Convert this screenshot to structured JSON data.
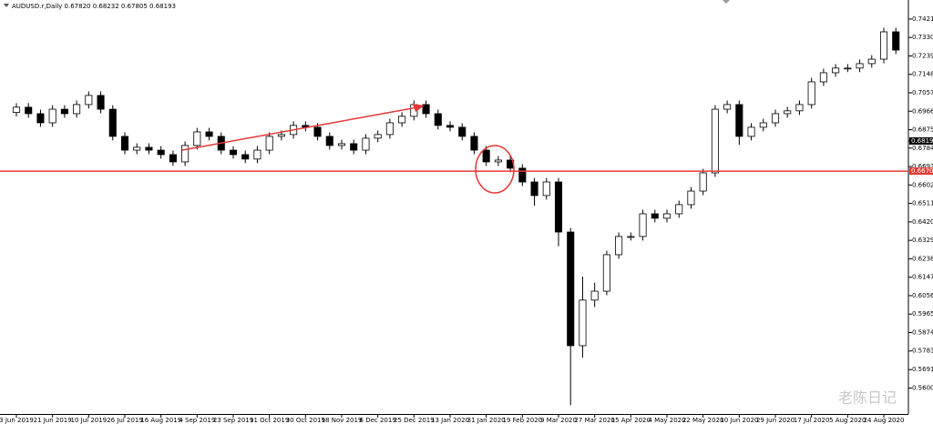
{
  "chart_data": {
    "type": "candlestick",
    "title": "AUDUSD.r,Daily 0.67820 0.68232 0.67805 0.68193",
    "categories": [
      "3 Jun 2019",
      null,
      null,
      "21 Jun 2019",
      null,
      null,
      "10 Jul 2019",
      null,
      null,
      "26 Jul 2019",
      null,
      null,
      "16 Aug 2019",
      null,
      null,
      "4 Sep 2019",
      null,
      null,
      "23 Sep 2019",
      null,
      null,
      "11 Oct 2019",
      null,
      null,
      "30 Oct 2019",
      null,
      null,
      "18 Nov 2019",
      null,
      null,
      "6 Dec 2019",
      null,
      null,
      "25 Dec 2019",
      null,
      null,
      "13 Jan 2020",
      null,
      null,
      "31 Jan 2020",
      null,
      null,
      "19 Feb 2020",
      null,
      null,
      "9 Mar 2020",
      null,
      null,
      "27 Mar 2020",
      null,
      null,
      "15 Apr 2020",
      null,
      null,
      "4 May 2020",
      null,
      null,
      "22 May 2020",
      null,
      null,
      "10 Jun 2020",
      null,
      null,
      "29 Jun 2020",
      null,
      null,
      "17 Jul 2020",
      null,
      null,
      "5 Aug 2020",
      null,
      null,
      "24 Aug 2020",
      null
    ],
    "open": [
      0.696,
      0.6986,
      0.6954,
      0.6909,
      0.6976,
      0.6954,
      0.6999,
      0.7044,
      0.6976,
      0.6842,
      0.6774,
      0.6788,
      0.6774,
      0.6752,
      0.6716,
      0.6797,
      0.6864,
      0.6842,
      0.6774,
      0.6752,
      0.673,
      0.6774,
      0.6842,
      0.6851,
      0.6896,
      0.6887,
      0.6842,
      0.6797,
      0.6806,
      0.6774,
      0.6833,
      0.6851,
      0.6909,
      0.6941,
      0.6999,
      0.6954,
      0.6896,
      0.6887,
      0.6842,
      0.6774,
      0.6716,
      0.6725,
      0.6685,
      0.6617,
      0.655,
      0.6617,
      0.637,
      0.5809,
      0.6034,
      0.6078,
      0.6258,
      0.6348,
      0.6348,
      0.646,
      0.6438,
      0.646,
      0.6505,
      0.6572,
      0.6662,
      0.6976,
      0.6999,
      0.6842,
      0.6887,
      0.6909,
      0.6954,
      0.6968,
      0.6999,
      0.7111,
      0.7156,
      0.7179,
      0.7179,
      0.7201,
      0.7223,
      0.7358
    ],
    "high": [
      0.7006,
      0.7006,
      0.6974,
      0.6996,
      0.6996,
      0.7019,
      0.7064,
      0.7064,
      0.6996,
      0.6862,
      0.6808,
      0.6808,
      0.6794,
      0.6772,
      0.6817,
      0.6884,
      0.6884,
      0.6862,
      0.6794,
      0.6772,
      0.6794,
      0.6862,
      0.6871,
      0.6916,
      0.6916,
      0.6907,
      0.6862,
      0.6826,
      0.6826,
      0.6853,
      0.6871,
      0.6929,
      0.6961,
      0.7019,
      0.7019,
      0.6974,
      0.6916,
      0.6907,
      0.6862,
      0.6794,
      0.6745,
      0.6745,
      0.6705,
      0.6637,
      0.6637,
      0.6637,
      0.639,
      0.615,
      0.612,
      0.6278,
      0.6368,
      0.6368,
      0.648,
      0.648,
      0.648,
      0.6525,
      0.6592,
      0.6682,
      0.6996,
      0.7019,
      0.7019,
      0.6907,
      0.6929,
      0.6974,
      0.6988,
      0.7019,
      0.7131,
      0.7176,
      0.7199,
      0.7199,
      0.7221,
      0.7243,
      0.7378,
      0.7378
    ],
    "low": [
      0.694,
      0.6934,
      0.6889,
      0.6889,
      0.6934,
      0.6934,
      0.6979,
      0.6956,
      0.6822,
      0.6754,
      0.6754,
      0.6754,
      0.6732,
      0.6696,
      0.6696,
      0.6777,
      0.6822,
      0.6754,
      0.6732,
      0.671,
      0.671,
      0.6754,
      0.6822,
      0.6831,
      0.6867,
      0.6822,
      0.6777,
      0.6777,
      0.6754,
      0.6754,
      0.6813,
      0.6831,
      0.6889,
      0.6921,
      0.6934,
      0.6876,
      0.6867,
      0.6822,
      0.6754,
      0.6696,
      0.6696,
      0.6665,
      0.6597,
      0.65,
      0.653,
      0.63,
      0.5515,
      0.575,
      0.6,
      0.6058,
      0.6238,
      0.6328,
      0.6328,
      0.6418,
      0.6418,
      0.644,
      0.6485,
      0.6552,
      0.6642,
      0.6956,
      0.68,
      0.6822,
      0.6867,
      0.6889,
      0.6934,
      0.6948,
      0.6979,
      0.7091,
      0.7136,
      0.7159,
      0.7159,
      0.7181,
      0.7203,
      0.7248
    ],
    "close": [
      0.6986,
      0.6954,
      0.6909,
      0.6976,
      0.6954,
      0.6999,
      0.7044,
      0.6976,
      0.6842,
      0.6774,
      0.6788,
      0.6774,
      0.6752,
      0.6716,
      0.6797,
      0.6864,
      0.6842,
      0.6774,
      0.6752,
      0.673,
      0.6774,
      0.6842,
      0.6851,
      0.6896,
      0.6887,
      0.6842,
      0.6797,
      0.6806,
      0.6774,
      0.6833,
      0.6851,
      0.6909,
      0.6941,
      0.6999,
      0.6954,
      0.6896,
      0.6887,
      0.6842,
      0.6774,
      0.6716,
      0.6725,
      0.6685,
      0.6617,
      0.655,
      0.6617,
      0.637,
      0.5809,
      0.6034,
      0.6078,
      0.6258,
      0.6348,
      0.6348,
      0.646,
      0.6438,
      0.646,
      0.6505,
      0.6572,
      0.6662,
      0.6976,
      0.6999,
      0.6842,
      0.6887,
      0.6909,
      0.6954,
      0.6968,
      0.6999,
      0.7111,
      0.7156,
      0.7179,
      0.7179,
      0.7201,
      0.7223,
      0.7358,
      0.7268
    ],
    "ylim": [
      0.5472,
      0.7515
    ],
    "yticks": [
      {
        "value": 0.7421,
        "label": "0.74210"
      },
      {
        "value": 0.733,
        "label": "0.73300"
      },
      {
        "value": 0.7239,
        "label": "0.72390"
      },
      {
        "value": 0.7148,
        "label": "0.71480"
      },
      {
        "value": 0.7057,
        "label": "0.70570"
      },
      {
        "value": 0.6966,
        "label": "0.69660"
      },
      {
        "value": 0.6875,
        "label": "0.68750"
      },
      {
        "value": 0.6784,
        "label": "0.67840"
      },
      {
        "value": 0.6693,
        "label": "0.66930"
      },
      {
        "value": 0.6602,
        "label": "0.66020"
      },
      {
        "value": 0.6511,
        "label": "0.65110"
      },
      {
        "value": 0.642,
        "label": "0.64200"
      },
      {
        "value": 0.6329,
        "label": "0.63290"
      },
      {
        "value": 0.6238,
        "label": "0.62380"
      },
      {
        "value": 0.6147,
        "label": "0.61470"
      },
      {
        "value": 0.6056,
        "label": "0.60560"
      },
      {
        "value": 0.5965,
        "label": "0.59650"
      },
      {
        "value": 0.5874,
        "label": "0.58740"
      },
      {
        "value": 0.5783,
        "label": "0.57830"
      },
      {
        "value": 0.5691,
        "label": "0.56910"
      },
      {
        "value": 0.56,
        "label": "0.56000"
      }
    ],
    "price_lines": [
      {
        "value": 0.68193,
        "color": "#000000"
      },
      {
        "value": 0.66705,
        "color": "#e53935"
      }
    ],
    "up_color": "#ffffff",
    "down_color": "#000000",
    "watermark": "老陈日记"
  }
}
